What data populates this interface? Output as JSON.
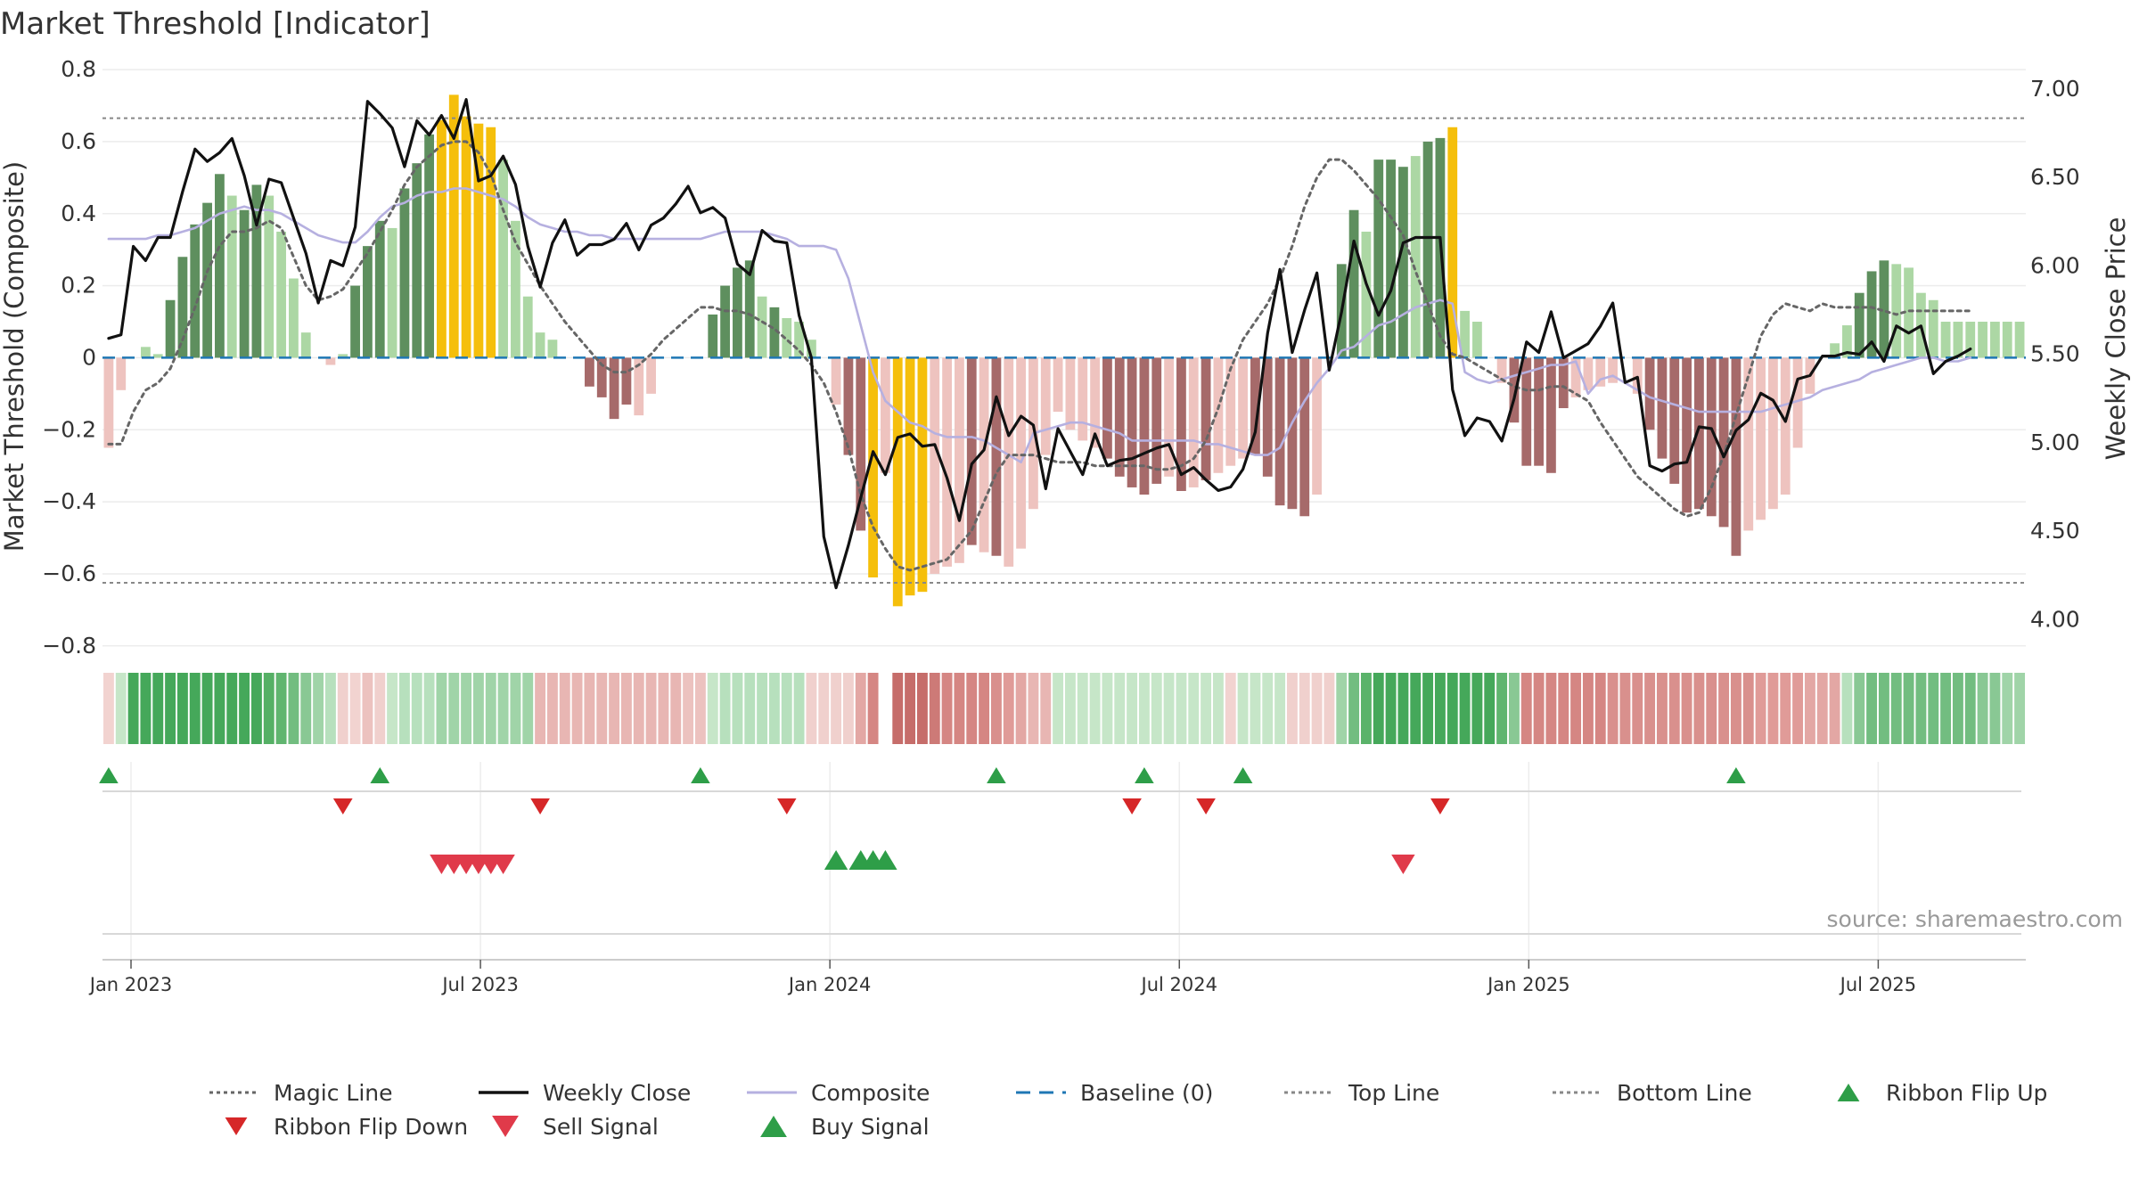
{
  "chart_data": {
    "type": "bar",
    "title": "Market Threshold [Indicator]",
    "source": "source: sharemaestro.com",
    "ylabel_left": "Market Threshold (Composite)",
    "ylabel_right": "Weekly Close Price",
    "ylim_left": [
      -0.85,
      0.82
    ],
    "ylim_right": [
      3.75,
      7.15
    ],
    "yticks_left": [
      {
        "v": 0.8,
        "label": "0.8"
      },
      {
        "v": 0.6,
        "label": "0.6"
      },
      {
        "v": 0.4,
        "label": "0.4"
      },
      {
        "v": 0.2,
        "label": "0.2"
      },
      {
        "v": 0,
        "label": "0"
      },
      {
        "v": -0.2,
        "label": "−0.2"
      },
      {
        "v": -0.4,
        "label": "−0.4"
      },
      {
        "v": -0.6,
        "label": "−0.6"
      },
      {
        "v": -0.8,
        "label": "−0.8"
      }
    ],
    "yticks_right": [
      {
        "v": 7.0,
        "label": "7.00"
      },
      {
        "v": 6.5,
        "label": "6.50"
      },
      {
        "v": 6.0,
        "label": "6.00"
      },
      {
        "v": 5.5,
        "label": "5.50"
      },
      {
        "v": 5.0,
        "label": "5.00"
      },
      {
        "v": 4.5,
        "label": "4.50"
      },
      {
        "v": 4.0,
        "label": "4.00"
      }
    ],
    "xticks": [
      {
        "week": 1,
        "label": "Jan 2023"
      },
      {
        "week": 27,
        "label": "Jul 2023"
      },
      {
        "week": 53,
        "label": "Jan 2024"
      },
      {
        "week": 79,
        "label": "Jul 2024"
      },
      {
        "week": 105,
        "label": "Jan 2025"
      },
      {
        "week": 131,
        "label": "Jul 2025"
      }
    ],
    "top_line": 0.665,
    "bottom_line": -0.625,
    "bar_colors": {
      "strong_pos": "#5e8f5e",
      "weak_pos": "#acd7a4",
      "extreme": "#f5bf0b",
      "strong_neg": "#a66a6a",
      "weak_neg": "#eec3bf"
    },
    "composite_bars": [
      -0.25,
      -0.09,
      0,
      0.03,
      0.01,
      0.16,
      0.28,
      0.37,
      0.43,
      0.51,
      0.45,
      0.41,
      0.48,
      0.45,
      0.35,
      0.22,
      0.07,
      0,
      -0.02,
      0.01,
      0.2,
      0.31,
      0.38,
      0.36,
      0.47,
      0.54,
      0.62,
      0.66,
      0.73,
      0.67,
      0.65,
      0.64,
      0.55,
      0.38,
      0.17,
      0.07,
      0.05,
      0,
      0,
      -0.08,
      -0.11,
      -0.17,
      -0.13,
      -0.16,
      -0.1,
      0,
      0,
      0,
      0,
      0.12,
      0.2,
      0.25,
      0.27,
      0.17,
      0.14,
      0.11,
      0.1,
      0.05,
      0,
      -0.13,
      -0.27,
      -0.48,
      -0.61,
      -0.32,
      -0.69,
      -0.66,
      -0.65,
      -0.6,
      -0.58,
      -0.57,
      -0.52,
      -0.54,
      -0.55,
      -0.58,
      -0.53,
      -0.42,
      -0.27,
      -0.15,
      -0.2,
      -0.23,
      -0.25,
      -0.28,
      -0.33,
      -0.36,
      -0.38,
      -0.35,
      -0.33,
      -0.37,
      -0.36,
      -0.34,
      -0.32,
      -0.3,
      -0.28,
      -0.27,
      -0.33,
      -0.41,
      -0.42,
      -0.44,
      -0.38,
      0,
      0.26,
      0.41,
      0.35,
      0.55,
      0.55,
      0.53,
      0.56,
      0.6,
      0.61,
      0.64,
      0.13,
      0.1,
      0,
      -0.07,
      -0.18,
      -0.3,
      -0.3,
      -0.32,
      -0.14,
      -0.11,
      -0.09,
      -0.08,
      -0.07,
      0,
      -0.1,
      -0.2,
      -0.28,
      -0.35,
      -0.43,
      -0.42,
      -0.44,
      -0.47,
      -0.55,
      -0.48,
      -0.45,
      -0.42,
      -0.38,
      -0.25,
      -0.1,
      0,
      0.04,
      0.09,
      0.18,
      0.24,
      0.27,
      0.26,
      0.25,
      0.18,
      0.16,
      0.1,
      0.1,
      0.1,
      0.1,
      0.1,
      0.1,
      0.1
    ],
    "bar_class": [
      "wn",
      "wn",
      "wn",
      "wp",
      "wp",
      "sp",
      "sp",
      "sp",
      "sp",
      "sp",
      "wp",
      "sp",
      "sp",
      "wp",
      "wp",
      "wp",
      "wp",
      "wp",
      "wn",
      "wp",
      "sp",
      "sp",
      "sp",
      "wp",
      "sp",
      "sp",
      "sp",
      "x",
      "x",
      "x",
      "x",
      "x",
      "wp",
      "wp",
      "wp",
      "wp",
      "wp",
      "wp",
      "wn",
      "sn",
      "sn",
      "sn",
      "sn",
      "wn",
      "wn",
      "wp",
      "wp",
      "wp",
      "wp",
      "sp",
      "sp",
      "sp",
      "sp",
      "wp",
      "sp",
      "wp",
      "wp",
      "wp",
      "wp",
      "wn",
      "sn",
      "sn",
      "x",
      "wn",
      "x",
      "x",
      "x",
      "wn",
      "wn",
      "wn",
      "sn",
      "wn",
      "sn",
      "wn",
      "wn",
      "wn",
      "wn",
      "wn",
      "wn",
      "wn",
      "wn",
      "sn",
      "sn",
      "sn",
      "sn",
      "sn",
      "wn",
      "sn",
      "wn",
      "sn",
      "wn",
      "wn",
      "wn",
      "sn",
      "sn",
      "sn",
      "sn",
      "sn",
      "wn",
      "wn",
      "sp",
      "sp",
      "wp",
      "sp",
      "sp",
      "sp",
      "wp",
      "sp",
      "sp",
      "x",
      "wp",
      "wp",
      "wp",
      "wn",
      "sn",
      "sn",
      "sn",
      "sn",
      "sn",
      "wn",
      "wn",
      "wn",
      "wn",
      "wn",
      "wn",
      "sn",
      "sn",
      "sn",
      "sn",
      "sn",
      "sn",
      "sn",
      "sn",
      "wn",
      "wn",
      "wn",
      "wn",
      "wn",
      "wn",
      "wp",
      "wp",
      "wp",
      "sp",
      "sp",
      "sp",
      "wp",
      "wp",
      "wp",
      "wp",
      "wp",
      "wp",
      "wp",
      "wp",
      "wp",
      "wp",
      "wp"
    ],
    "ribbon_colors": [
      "#f2d3d0",
      "#c6e6c8",
      "#45a85a",
      "#45a85a",
      "#45a85a",
      "#45a85a",
      "#45a85a",
      "#45a85a",
      "#45a85a",
      "#45a85a",
      "#45a85a",
      "#45a85a",
      "#45a85a",
      "#55b065",
      "#60b56f",
      "#72bd80",
      "#89c894",
      "#a0d4a8",
      "#b7e0bd",
      "#f0d0cd",
      "#f2d3d0",
      "#ecc2bf",
      "#f0d0cd",
      "#c6e6c8",
      "#b7e0bd",
      "#b7e0bd",
      "#b7e0bd",
      "#a0d4a8",
      "#a0d4a8",
      "#a0d4a8",
      "#a0d4a8",
      "#a0d4a8",
      "#a0d4a8",
      "#a0d4a8",
      "#a0d4a8",
      "#e8b6b3",
      "#e8b6b3",
      "#e8b6b3",
      "#e8b6b3",
      "#e8b6b3",
      "#e8b6b3",
      "#e8b6b3",
      "#e8b6b3",
      "#e8b6b3",
      "#e8b6b3",
      "#e8b6b3",
      "#e8b6b3",
      "#ecc2bf",
      "#ecc2bf",
      "#c6e6c8",
      "#b7e0bd",
      "#b7e0bd",
      "#b7e0bd",
      "#b7e0bd",
      "#b7e0bd",
      "#b7e0bd",
      "#b7e0bd",
      "#f0d0cd",
      "#f0d0cd",
      "#f0d0cd",
      "#f0d0cd",
      "#e3a7a4",
      "#d58683",
      "#ffffff",
      "#c66d6a",
      "#c66d6a",
      "#c66d6a",
      "#cd7a77",
      "#d58683",
      "#d58683",
      "#d58683",
      "#d58683",
      "#d9908d",
      "#e09b98",
      "#e3a7a4",
      "#e8b6b3",
      "#e8b6b3",
      "#c6e6c8",
      "#c6e6c8",
      "#c6e6c8",
      "#c6e6c8",
      "#c6e6c8",
      "#c6e6c8",
      "#c6e6c8",
      "#c6e6c8",
      "#c6e6c8",
      "#c6e6c8",
      "#c6e6c8",
      "#c6e6c8",
      "#c6e6c8",
      "#c6e6c8",
      "#f2d3d0",
      "#c6e6c8",
      "#c6e6c8",
      "#c6e6c8",
      "#c6e6c8",
      "#f0d0cd",
      "#f0d0cd",
      "#f0d0cd",
      "#f0d0cd",
      "#a0d4a8",
      "#72bd80",
      "#5ab36a",
      "#45a85a",
      "#45a85a",
      "#45a85a",
      "#45a85a",
      "#45a85a",
      "#45a85a",
      "#45a85a",
      "#45a85a",
      "#45a85a",
      "#45a85a",
      "#60b56f",
      "#89c894",
      "#d58683",
      "#d58683",
      "#d58683",
      "#d58683",
      "#d58683",
      "#d58683",
      "#d58683",
      "#d9908d",
      "#d9908d",
      "#d9908d",
      "#d9908d",
      "#d9908d",
      "#d9908d",
      "#d9908d",
      "#d9908d",
      "#d9908d",
      "#d9908d",
      "#d9908d",
      "#d9908d",
      "#e09b98",
      "#e09b98",
      "#e09b98",
      "#e09b98",
      "#e3a7a4",
      "#e3a7a4",
      "#e3a7a4",
      "#b7e0bd",
      "#89c894",
      "#72bd80",
      "#72bd80",
      "#72bd80",
      "#72bd80",
      "#72bd80",
      "#72bd80",
      "#72bd80",
      "#72bd80",
      "#72bd80",
      "#89c894",
      "#89c894",
      "#a0d4a8",
      "#a0d4a8"
    ],
    "series": [
      {
        "name": "Weekly Close",
        "axis": "right",
        "color": "#111111",
        "values": [
          5.59,
          5.61,
          6.11,
          6.03,
          6.16,
          6.16,
          6.42,
          6.66,
          6.59,
          6.64,
          6.72,
          6.51,
          6.23,
          6.49,
          6.47,
          6.27,
          6.07,
          5.79,
          6.03,
          6.0,
          6.22,
          6.93,
          6.86,
          6.78,
          6.56,
          6.82,
          6.74,
          6.85,
          6.72,
          6.94,
          6.48,
          6.51,
          6.62,
          6.46,
          6.11,
          5.88,
          6.13,
          6.26,
          6.06,
          6.12,
          6.12,
          6.15,
          6.24,
          6.09,
          6.23,
          6.27,
          6.35,
          6.45,
          6.3,
          6.33,
          6.27,
          6.01,
          5.95,
          6.2,
          6.14,
          6.13,
          5.72,
          5.48,
          4.47,
          4.18,
          4.42,
          4.69,
          4.95,
          4.82,
          5.03,
          5.05,
          4.98,
          4.99,
          4.8,
          4.56,
          4.88,
          4.96,
          5.26,
          5.04,
          5.15,
          5.1,
          4.74,
          5.08,
          4.95,
          4.82,
          5.05,
          4.87,
          4.9,
          4.91,
          4.94,
          4.97,
          4.99,
          4.82,
          4.86,
          4.79,
          4.73,
          4.75,
          4.85,
          5.06,
          5.62,
          5.98,
          5.51,
          5.75,
          5.96,
          5.41,
          5.74,
          6.14,
          5.9,
          5.72,
          5.86,
          6.13,
          6.16,
          6.16,
          6.16,
          5.3,
          5.04,
          5.14,
          5.12,
          5.01,
          5.25,
          5.57,
          5.51,
          5.74,
          5.48,
          5.52,
          5.56,
          5.66,
          5.79,
          5.34,
          5.37,
          4.87,
          4.84,
          4.88,
          4.89,
          5.09,
          5.08,
          4.92,
          5.07,
          5.13,
          5.28,
          5.24,
          5.12,
          5.36,
          5.38,
          5.49,
          5.49,
          5.51,
          5.5,
          5.57,
          5.46,
          5.66,
          5.62,
          5.66,
          5.39,
          5.46,
          5.49,
          5.53
        ]
      },
      {
        "name": "Composite",
        "axis": "left",
        "color": "#b6b0e0",
        "values": [
          0.33,
          0.33,
          0.33,
          0.33,
          0.34,
          0.34,
          0.35,
          0.36,
          0.38,
          0.4,
          0.41,
          0.42,
          0.41,
          0.41,
          0.4,
          0.38,
          0.36,
          0.34,
          0.33,
          0.32,
          0.32,
          0.35,
          0.39,
          0.42,
          0.43,
          0.45,
          0.46,
          0.46,
          0.47,
          0.47,
          0.46,
          0.45,
          0.44,
          0.42,
          0.39,
          0.37,
          0.36,
          0.35,
          0.35,
          0.34,
          0.34,
          0.33,
          0.33,
          0.33,
          0.33,
          0.33,
          0.33,
          0.33,
          0.33,
          0.34,
          0.35,
          0.35,
          0.35,
          0.35,
          0.34,
          0.33,
          0.31,
          0.31,
          0.31,
          0.3,
          0.22,
          0.09,
          -0.04,
          -0.12,
          -0.15,
          -0.18,
          -0.19,
          -0.21,
          -0.22,
          -0.22,
          -0.22,
          -0.23,
          -0.25,
          -0.27,
          -0.29,
          -0.21,
          -0.2,
          -0.19,
          -0.18,
          -0.18,
          -0.19,
          -0.2,
          -0.21,
          -0.23,
          -0.23,
          -0.23,
          -0.23,
          -0.23,
          -0.23,
          -0.24,
          -0.24,
          -0.25,
          -0.26,
          -0.27,
          -0.27,
          -0.25,
          -0.18,
          -0.12,
          -0.07,
          -0.03,
          0.02,
          0.03,
          0.06,
          0.09,
          0.1,
          0.12,
          0.14,
          0.15,
          0.16,
          0.15,
          -0.04,
          -0.06,
          -0.07,
          -0.06,
          -0.05,
          -0.04,
          -0.03,
          -0.02,
          -0.02,
          -0.01,
          -0.1,
          -0.06,
          -0.05,
          -0.07,
          -0.09,
          -0.11,
          -0.12,
          -0.13,
          -0.14,
          -0.15,
          -0.15,
          -0.15,
          -0.15,
          -0.15,
          -0.15,
          -0.14,
          -0.13,
          -0.12,
          -0.11,
          -0.09,
          -0.08,
          -0.07,
          -0.06,
          -0.04,
          -0.03,
          -0.02,
          -0.01,
          0,
          0,
          -0.01,
          -0.01,
          0
        ]
      },
      {
        "name": "Magic Line",
        "axis": "left",
        "color": "#666666",
        "values": [
          -0.24,
          -0.24,
          -0.15,
          -0.09,
          -0.07,
          -0.03,
          0.05,
          0.14,
          0.24,
          0.31,
          0.35,
          0.35,
          0.36,
          0.38,
          0.36,
          0.28,
          0.2,
          0.16,
          0.17,
          0.19,
          0.24,
          0.29,
          0.35,
          0.41,
          0.48,
          0.53,
          0.56,
          0.59,
          0.6,
          0.6,
          0.57,
          0.51,
          0.41,
          0.32,
          0.26,
          0.2,
          0.15,
          0.1,
          0.06,
          0.02,
          -0.02,
          -0.04,
          -0.04,
          -0.02,
          0.01,
          0.05,
          0.08,
          0.11,
          0.14,
          0.14,
          0.13,
          0.13,
          0.12,
          0.1,
          0.08,
          0.05,
          0.02,
          -0.02,
          -0.07,
          -0.15,
          -0.25,
          -0.38,
          -0.47,
          -0.53,
          -0.58,
          -0.59,
          -0.58,
          -0.57,
          -0.56,
          -0.52,
          -0.48,
          -0.4,
          -0.32,
          -0.27,
          -0.27,
          -0.27,
          -0.28,
          -0.29,
          -0.29,
          -0.29,
          -0.3,
          -0.3,
          -0.3,
          -0.3,
          -0.3,
          -0.31,
          -0.31,
          -0.3,
          -0.28,
          -0.23,
          -0.14,
          -0.03,
          0.05,
          0.1,
          0.15,
          0.22,
          0.31,
          0.42,
          0.5,
          0.55,
          0.55,
          0.52,
          0.48,
          0.44,
          0.39,
          0.34,
          0.24,
          0.15,
          0.06,
          0.01,
          0,
          -0.02,
          -0.04,
          -0.06,
          -0.08,
          -0.09,
          -0.09,
          -0.08,
          -0.08,
          -0.1,
          -0.12,
          -0.18,
          -0.23,
          -0.28,
          -0.33,
          -0.36,
          -0.39,
          -0.42,
          -0.44,
          -0.43,
          -0.36,
          -0.27,
          -0.16,
          -0.05,
          0.06,
          0.12,
          0.15,
          0.14,
          0.13,
          0.15,
          0.14,
          0.14,
          0.14,
          0.14,
          0.13,
          0.12,
          0.13,
          0.13,
          0.13,
          0.13,
          0.13,
          0.13
        ]
      }
    ],
    "ribbon_flip_up_weeks": [
      0,
      22,
      48,
      72,
      84,
      92,
      132
    ],
    "ribbon_flip_down_weeks": [
      19,
      35,
      55,
      83,
      89,
      108
    ],
    "sell_signal_weeks": [
      27,
      28,
      29,
      30,
      31,
      32,
      105
    ],
    "buy_signal_weeks": [
      59,
      61,
      62,
      63
    ],
    "legend": [
      {
        "label": "Magic Line",
        "symbol": "dotted-line",
        "color": "#666666"
      },
      {
        "label": "Weekly Close",
        "symbol": "solid-line",
        "color": "#111111"
      },
      {
        "label": "Composite",
        "symbol": "solid-line",
        "color": "#b6b0e0"
      },
      {
        "label": "Baseline (0)",
        "symbol": "dashed-line",
        "color": "#1f77b4"
      },
      {
        "label": "Top Line",
        "symbol": "dotted-line",
        "color": "#888888"
      },
      {
        "label": "Bottom Line",
        "symbol": "dotted-line",
        "color": "#888888"
      },
      {
        "label": "Ribbon Flip Up",
        "symbol": "triangle-up",
        "color": "#2e9e48"
      },
      {
        "label": "Ribbon Flip Down",
        "symbol": "triangle-down",
        "color": "#d62728"
      },
      {
        "label": "Sell Signal",
        "symbol": "triangle-down",
        "color": "#e03a4a"
      },
      {
        "label": "Buy Signal",
        "symbol": "triangle-up",
        "color": "#2e9e48"
      }
    ]
  }
}
